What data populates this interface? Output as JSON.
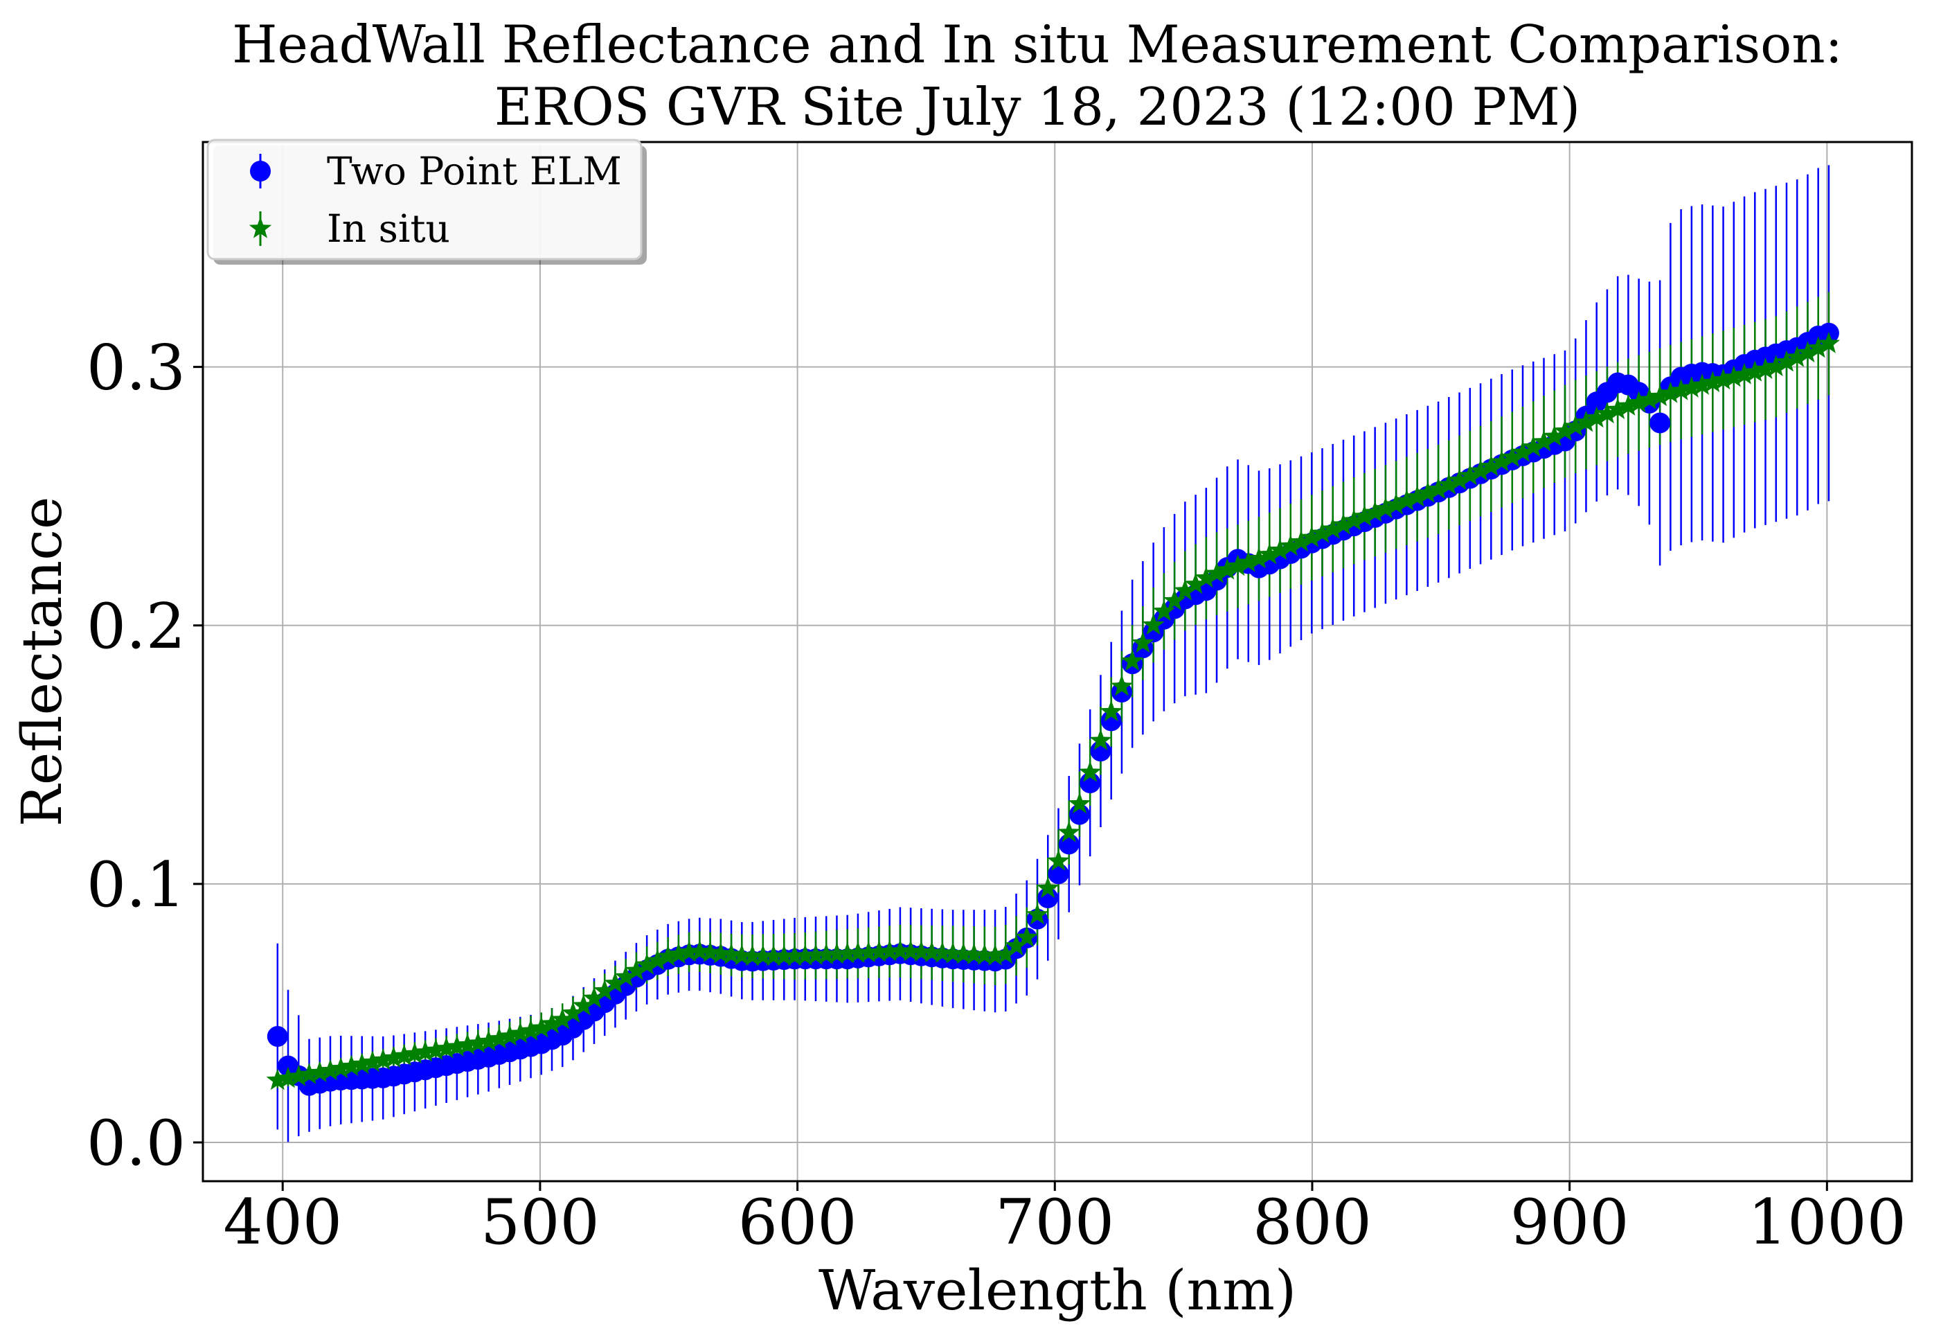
{
  "chart_data": {
    "type": "scatter",
    "title_line1": "HeadWall Reflectance and In situ Measurement Comparison:",
    "title_line2": "EROS GVR Site July 18, 2023 (12:00 PM)",
    "xlabel": "Wavelength (nm)",
    "ylabel": "Reflectance",
    "xlim": [
      369,
      1033
    ],
    "ylim": [
      -0.015,
      0.387
    ],
    "xticks": [
      400,
      500,
      600,
      700,
      800,
      900,
      1000
    ],
    "xtick_labels": [
      "400",
      "500",
      "600",
      "700",
      "800",
      "900",
      "1000"
    ],
    "yticks": [
      0.0,
      0.1,
      0.2,
      0.3
    ],
    "ytick_labels": [
      "0.0",
      "0.1",
      "0.2",
      "0.3"
    ],
    "grid": true,
    "legend_position": "top-left",
    "x_start": 398,
    "x_step": 4.1,
    "x_count": 148,
    "series": [
      {
        "name": "Two Point ELM",
        "marker": "circle",
        "color": "#0000ff",
        "knots_x": [
          398,
          400,
          403,
          406,
          410,
          420,
          440,
          460,
          480,
          500,
          510,
          520,
          530,
          540,
          550,
          560,
          570,
          580,
          600,
          620,
          640,
          660,
          680,
          690,
          700,
          710,
          720,
          730,
          740,
          750,
          760,
          770,
          780,
          800,
          820,
          850,
          880,
          900,
          910,
          920,
          930,
          935,
          940,
          950,
          960,
          970,
          980,
          990,
          1000,
          1003
        ],
        "knots_y": [
          0.041,
          0.031,
          0.029,
          0.026,
          0.022,
          0.024,
          0.025,
          0.029,
          0.033,
          0.038,
          0.042,
          0.05,
          0.058,
          0.066,
          0.071,
          0.073,
          0.072,
          0.07,
          0.071,
          0.071,
          0.073,
          0.071,
          0.07,
          0.08,
          0.1,
          0.128,
          0.158,
          0.185,
          0.2,
          0.21,
          0.214,
          0.226,
          0.222,
          0.232,
          0.24,
          0.252,
          0.265,
          0.272,
          0.286,
          0.295,
          0.288,
          0.278,
          0.295,
          0.298,
          0.297,
          0.302,
          0.305,
          0.308,
          0.314,
          0.31
        ],
        "err_knots_x": [
          398,
          403,
          410,
          500,
          560,
          680,
          700,
          740,
          760,
          800,
          900,
          930,
          940,
          1003
        ],
        "err_knots_y": [
          0.036,
          0.028,
          0.018,
          0.012,
          0.014,
          0.02,
          0.025,
          0.035,
          0.04,
          0.035,
          0.035,
          0.045,
          0.065,
          0.065
        ]
      },
      {
        "name": "In situ",
        "marker": "star",
        "color": "#008000",
        "knots_x": [
          398,
          420,
          450,
          480,
          500,
          510,
          520,
          530,
          540,
          550,
          560,
          570,
          580,
          600,
          620,
          640,
          660,
          680,
          690,
          700,
          710,
          720,
          730,
          740,
          750,
          760,
          780,
          800,
          820,
          850,
          880,
          900,
          920,
          940,
          960,
          980,
          1003
        ],
        "knots_y": [
          0.024,
          0.028,
          0.034,
          0.039,
          0.044,
          0.048,
          0.055,
          0.062,
          0.068,
          0.072,
          0.074,
          0.073,
          0.072,
          0.072,
          0.073,
          0.074,
          0.073,
          0.072,
          0.08,
          0.105,
          0.132,
          0.162,
          0.186,
          0.203,
          0.213,
          0.219,
          0.226,
          0.234,
          0.242,
          0.253,
          0.266,
          0.276,
          0.284,
          0.29,
          0.295,
          0.3,
          0.31
        ],
        "err_knots_x": [
          398,
          500,
          600,
          700,
          760,
          900,
          1003
        ],
        "err_knots_y": [
          0.003,
          0.006,
          0.009,
          0.012,
          0.016,
          0.018,
          0.02
        ]
      }
    ]
  }
}
